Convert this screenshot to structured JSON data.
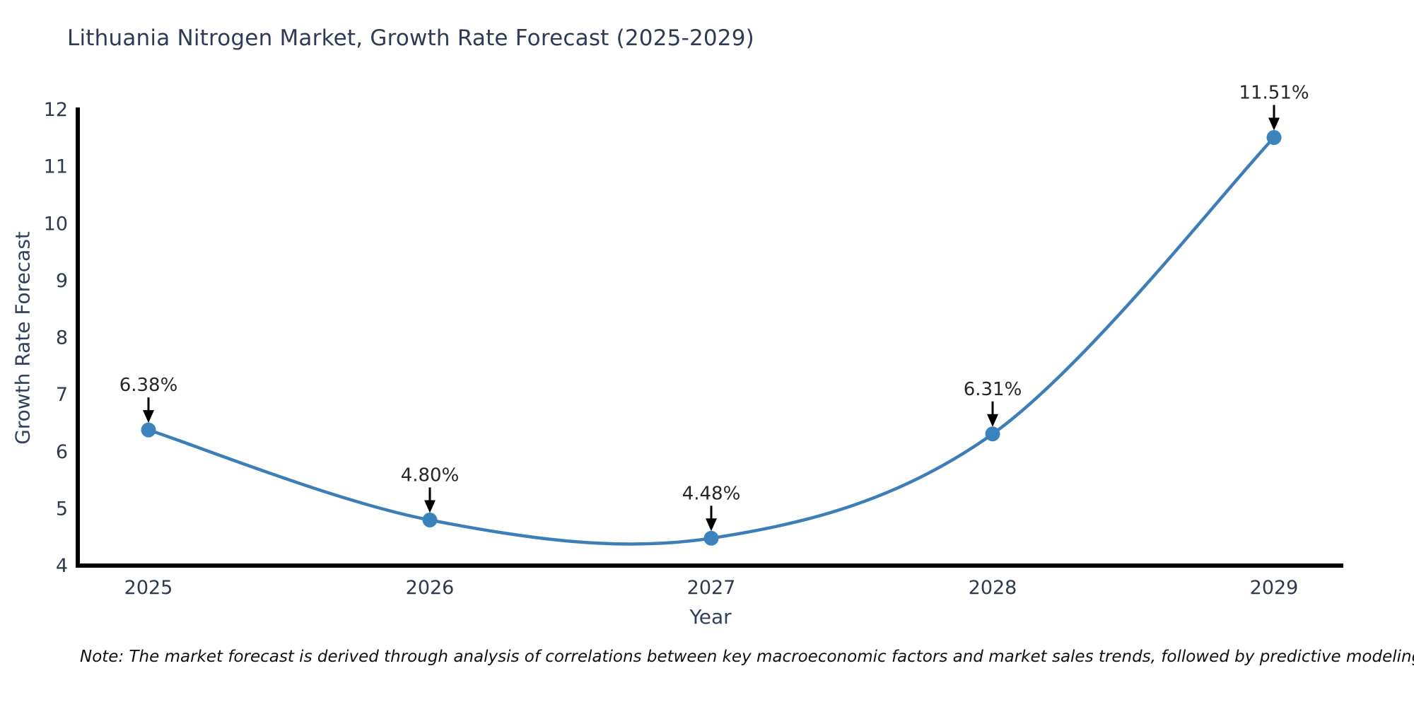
{
  "chart_data": {
    "type": "line",
    "title": "Lithuania Nitrogen Market, Growth Rate Forecast (2025-2029)",
    "xlabel": "Year",
    "ylabel": "Growth Rate Forecast",
    "categories": [
      "2025",
      "2026",
      "2027",
      "2028",
      "2029"
    ],
    "series": [
      {
        "name": "Growth Rate Forecast",
        "values": [
          6.38,
          4.8,
          4.48,
          6.31,
          11.51
        ],
        "point_labels": [
          "6.38%",
          "4.80%",
          "4.48%",
          "6.31%",
          "11.51%"
        ]
      }
    ],
    "ylim": [
      4,
      12
    ],
    "y_ticks": [
      "4",
      "5",
      "6",
      "7",
      "8",
      "9",
      "10",
      "11",
      "12"
    ],
    "grid": false,
    "legend": "none",
    "line_style": "smooth-spline",
    "annotation_style": "black-down-arrow",
    "note": "Note: The market forecast is derived through analysis of correlations between key macroeconomic factors and market sales trends, followed by predictive modeling to project future sales.",
    "colors": {
      "line": "#3d7eb8",
      "marker": "#3c83bd",
      "axis": "#000000",
      "tick_text": "#2e3a4e",
      "title_text": "#2f3b54",
      "annotation_text": "#262626",
      "annotation_arrow": "#000000",
      "note_text": "#111111",
      "background": "#ffffff"
    }
  }
}
